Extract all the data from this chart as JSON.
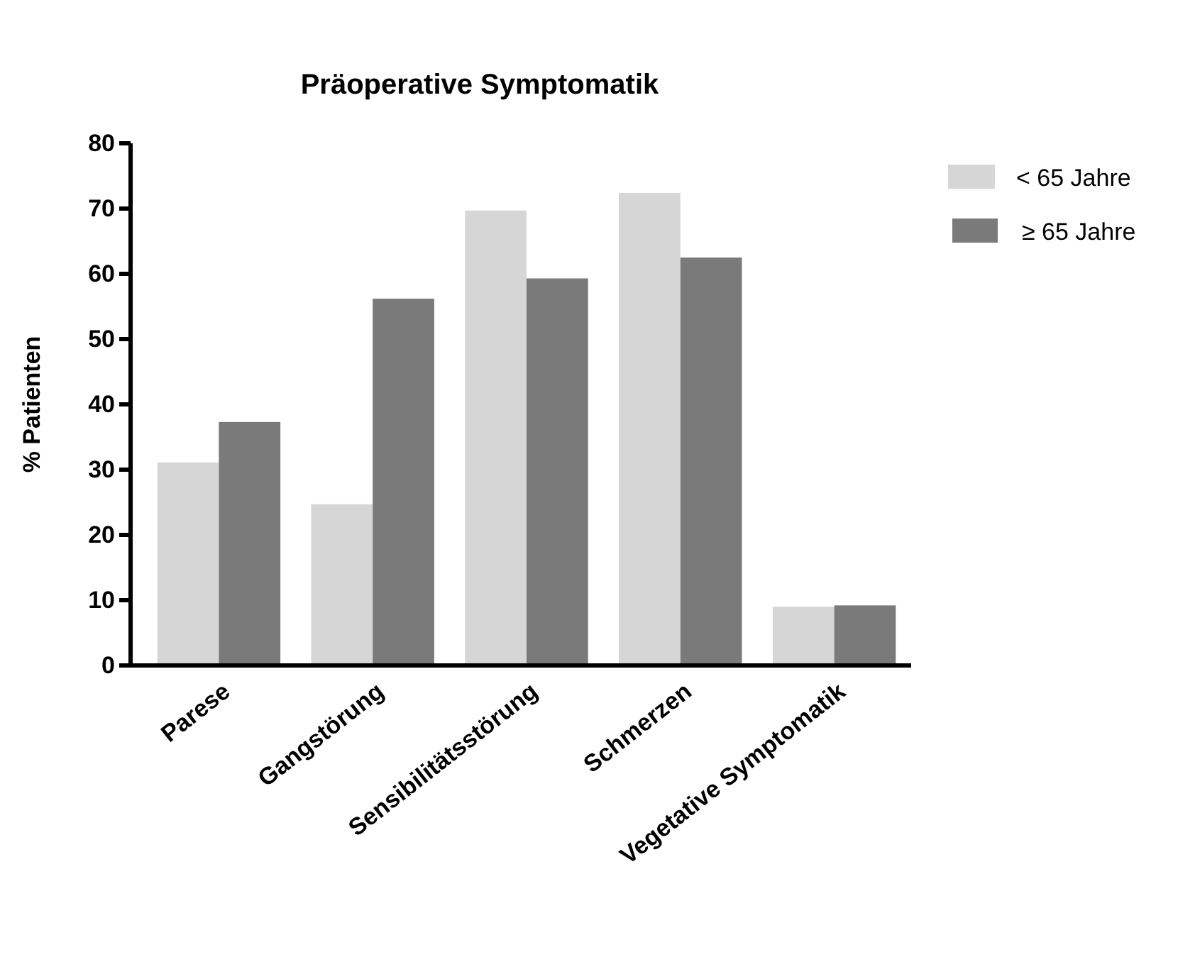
{
  "chart_data": {
    "type": "bar",
    "title": "Präoperative Symptomatik",
    "ylabel": "% Patienten",
    "categories": [
      "Parese",
      "Gangstörung",
      "Sensibilitätsstörung",
      "Schmerzen",
      "Vegetative Symptomatik"
    ],
    "series": [
      {
        "name": "< 65 Jahre",
        "color": "#d6d6d6",
        "values": [
          31.1,
          24.7,
          69.7,
          72.4,
          9.0
        ]
      },
      {
        "name": "≥ 65 Jahre",
        "color": "#7a7a7a",
        "values": [
          37.3,
          56.2,
          59.3,
          62.5,
          9.2
        ]
      }
    ],
    "ylim": [
      0,
      80
    ],
    "yticks": [
      0,
      10,
      20,
      30,
      40,
      50,
      60,
      70,
      80
    ],
    "grid": false,
    "legend": "top right"
  }
}
